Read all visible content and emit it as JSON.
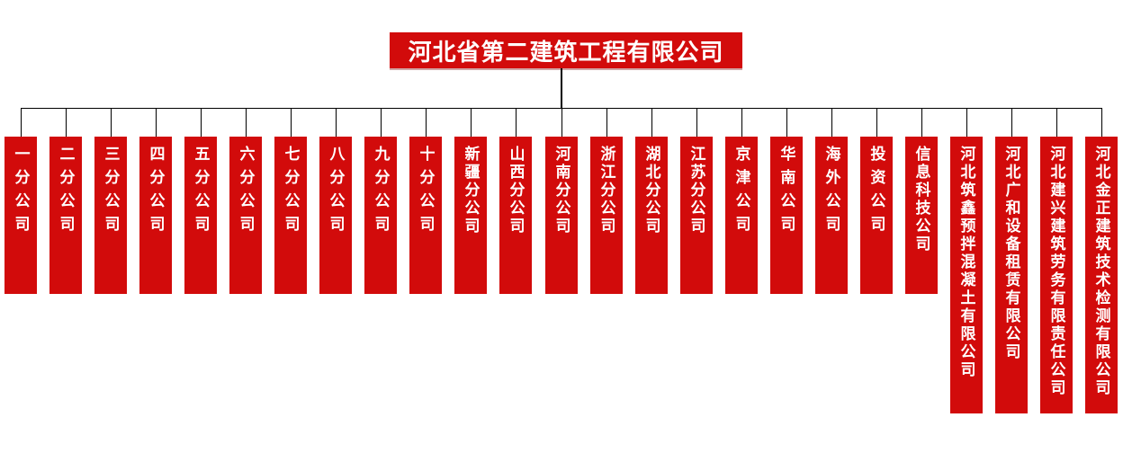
{
  "root": {
    "title": "河北省第二建筑工程有限公司"
  },
  "subsidiaries": [
    {
      "label": "一分公司",
      "tall": false
    },
    {
      "label": "二分公司",
      "tall": false
    },
    {
      "label": "三分公司",
      "tall": false
    },
    {
      "label": "四分公司",
      "tall": false
    },
    {
      "label": "五分公司",
      "tall": false
    },
    {
      "label": "六分公司",
      "tall": false
    },
    {
      "label": "七分公司",
      "tall": false
    },
    {
      "label": "八分公司",
      "tall": false
    },
    {
      "label": "九分公司",
      "tall": false
    },
    {
      "label": "十分公司",
      "tall": false
    },
    {
      "label": "新疆分公司",
      "tall": false
    },
    {
      "label": "山西分公司",
      "tall": false
    },
    {
      "label": "河南分公司",
      "tall": false
    },
    {
      "label": "浙江分公司",
      "tall": false
    },
    {
      "label": "湖北分公司",
      "tall": false
    },
    {
      "label": "江苏分公司",
      "tall": false
    },
    {
      "label": "京津公司",
      "tall": false
    },
    {
      "label": "华南公司",
      "tall": false
    },
    {
      "label": "海外公司",
      "tall": false
    },
    {
      "label": "投资公司",
      "tall": false
    },
    {
      "label": "信息科技公司",
      "tall": false
    },
    {
      "label": "河北筑鑫预拌混凝土有限公司",
      "tall": true
    },
    {
      "label": "河北广和设备租赁有限公司",
      "tall": true
    },
    {
      "label": "河北建兴建筑劳务有限责任公司",
      "tall": true
    },
    {
      "label": "河北金正建筑技术检测有限公司",
      "tall": true
    }
  ],
  "colors": {
    "box_red": "#d20b0b",
    "line_black": "#000000",
    "text_white": "#ffffff"
  }
}
